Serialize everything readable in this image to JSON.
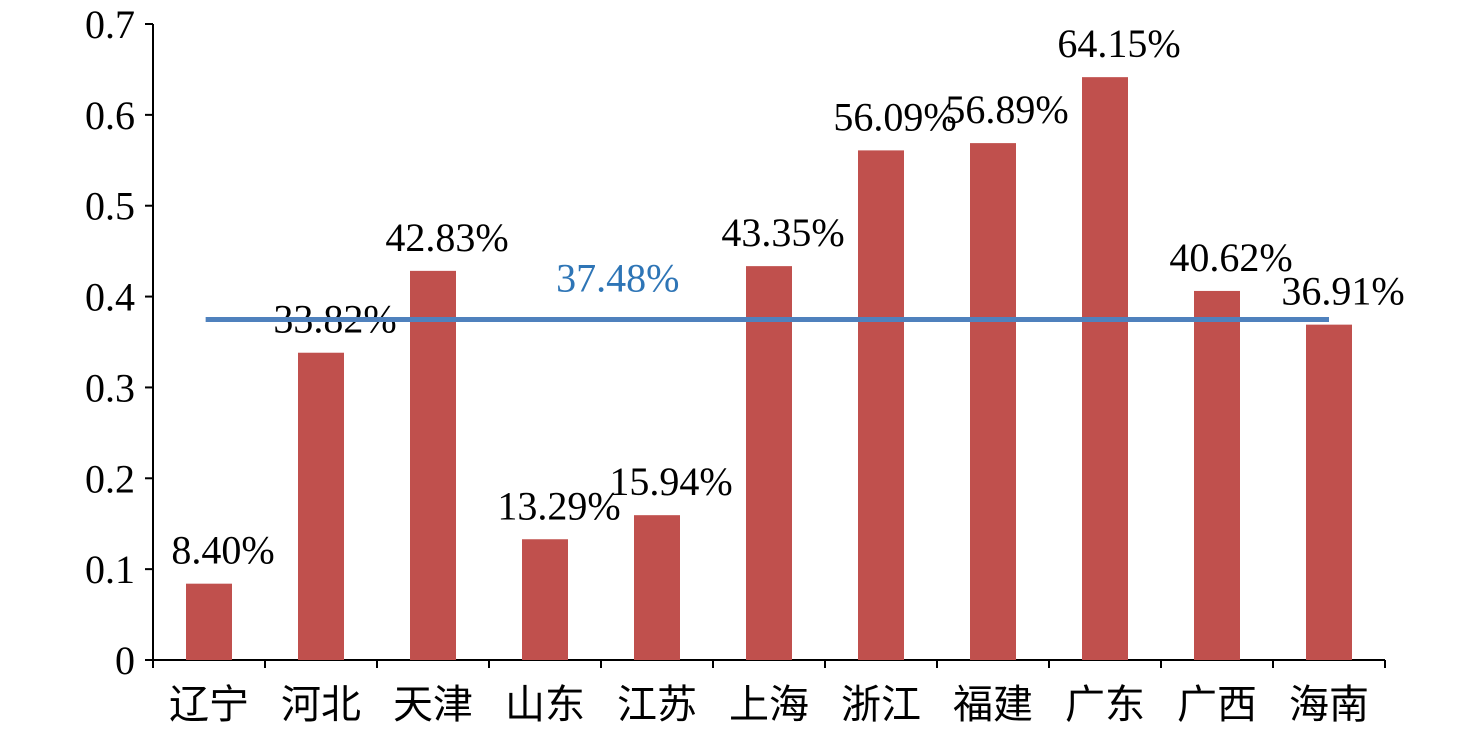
{
  "chart_data": {
    "type": "bar",
    "categories": [
      "辽宁",
      "河北",
      "天津",
      "山东",
      "江苏",
      "上海",
      "浙江",
      "福建",
      "广东",
      "广西",
      "海南"
    ],
    "values": [
      0.084,
      0.3382,
      0.4283,
      0.1329,
      0.1594,
      0.4335,
      0.5609,
      0.5689,
      0.6415,
      0.4062,
      0.3691
    ],
    "value_labels": [
      "8.40%",
      "33.82%",
      "42.83%",
      "13.29%",
      "15.94%",
      "43.35%",
      "56.09%",
      "56.89%",
      "64.15%",
      "40.62%",
      "36.91%"
    ],
    "color": "#c0504d",
    "ylim": [
      0,
      0.7
    ],
    "yticks": [
      0,
      0.1,
      0.2,
      0.3,
      0.4,
      0.5,
      0.6,
      0.7
    ],
    "grid": false,
    "reference_line": {
      "value": 0.3748,
      "label": "37.48%",
      "color": "#4f81bd",
      "label_color": "#2e75b6"
    }
  }
}
